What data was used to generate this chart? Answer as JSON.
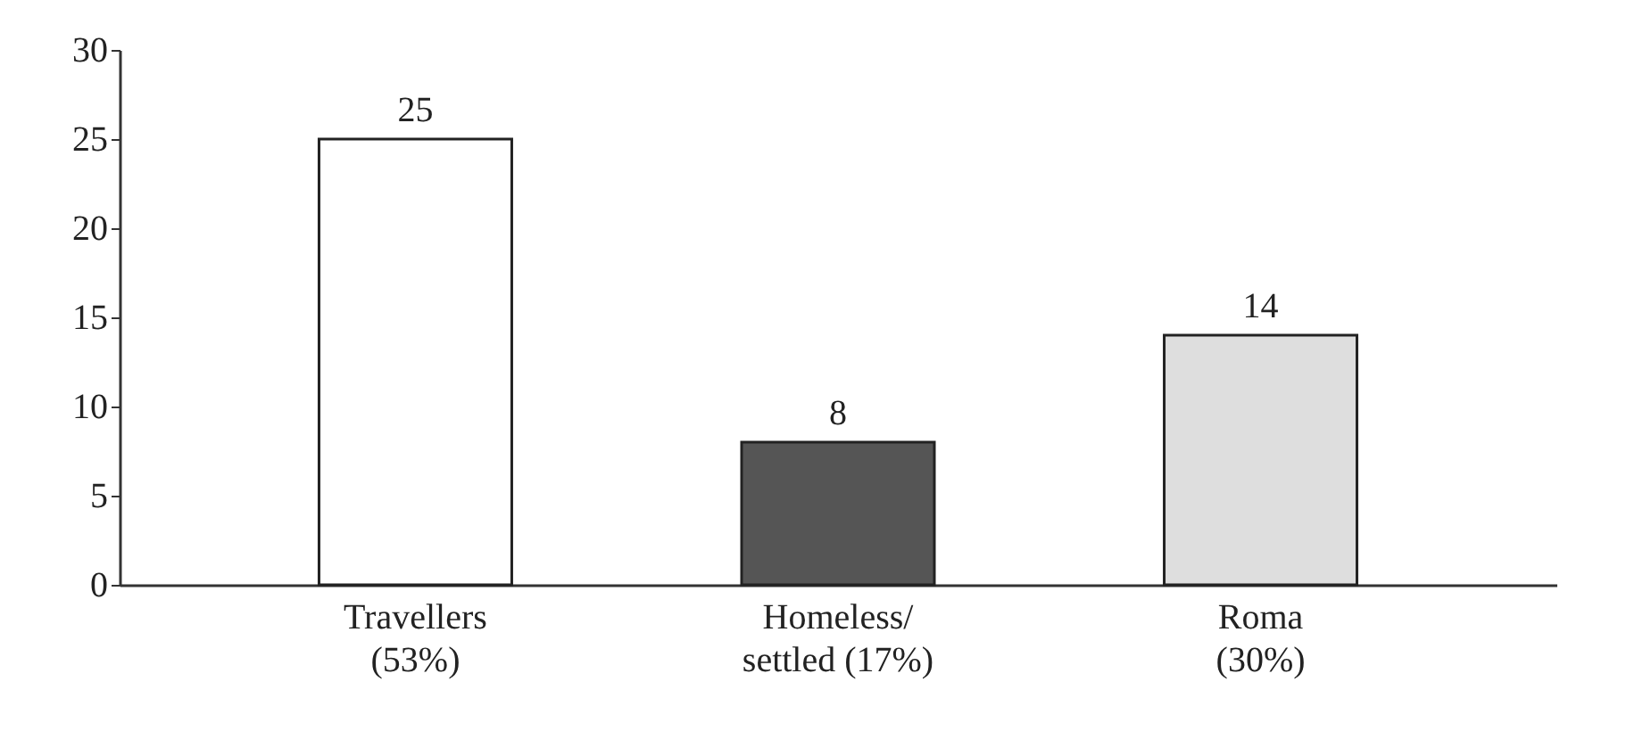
{
  "chart_data": {
    "type": "bar",
    "categories": [
      "Travellers\n(53%)",
      "Homeless/\nsettled (17%)",
      "Roma\n(30%)"
    ],
    "values": [
      25,
      8,
      14
    ],
    "colors": [
      "#ffffff",
      "#555555",
      "#dedede"
    ],
    "ylim": [
      0,
      30
    ],
    "yticks": [
      0,
      5,
      10,
      15,
      20,
      25,
      30
    ],
    "data_labels": true,
    "grid": false
  }
}
